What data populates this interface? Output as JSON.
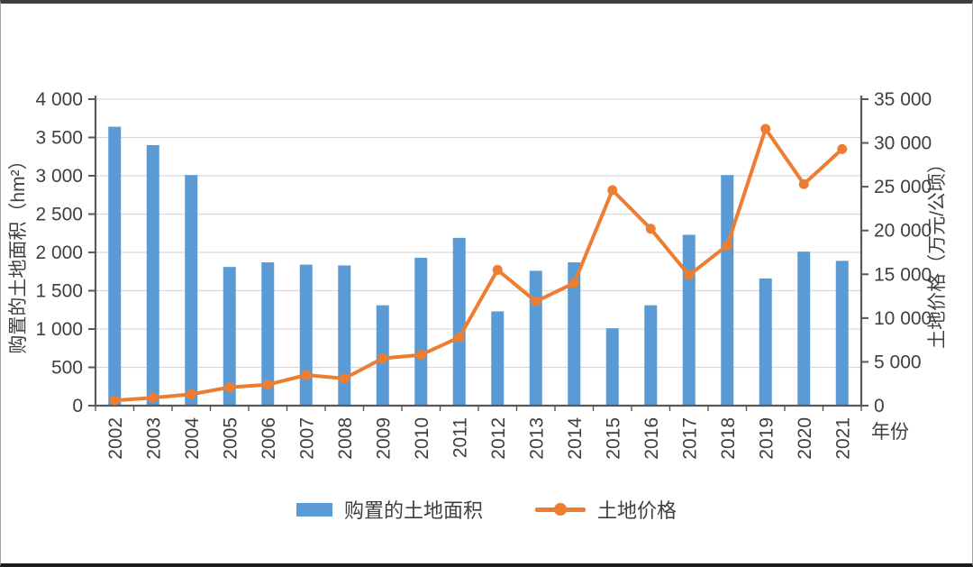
{
  "chart_data": {
    "type": "bar+line",
    "categories": [
      "2002",
      "2003",
      "2004",
      "2005",
      "2006",
      "2007",
      "2008",
      "2009",
      "2010",
      "2011",
      "2012",
      "2013",
      "2014",
      "2015",
      "2016",
      "2017",
      "2018",
      "2019",
      "2020",
      "2021"
    ],
    "series": [
      {
        "name": "购置的土地面积",
        "type": "bar",
        "axis": "left",
        "color": "#5B9BD5",
        "values": [
          3640,
          3400,
          3010,
          1810,
          1870,
          1840,
          1830,
          1310,
          1930,
          2190,
          1230,
          1760,
          1870,
          1010,
          1310,
          2230,
          3010,
          1660,
          2010,
          1890
        ]
      },
      {
        "name": "土地价格",
        "type": "line",
        "axis": "right",
        "color": "#ED7D31",
        "values": [
          600,
          900,
          1300,
          2100,
          2400,
          3500,
          3100,
          5400,
          5800,
          7800,
          15500,
          11900,
          14000,
          24600,
          20200,
          14900,
          18300,
          31600,
          25300,
          29300
        ]
      }
    ],
    "left_axis": {
      "title": "购置的土地面积（hm²）",
      "min": 0,
      "max": 4000,
      "step": 500,
      "tick_labels": [
        "0",
        "500",
        "1 000",
        "1 500",
        "2 000",
        "2 500",
        "3 000",
        "3 500",
        "4 000"
      ]
    },
    "right_axis": {
      "title": "土地价格（万元/公顷）",
      "min": 0,
      "max": 35000,
      "step": 5000,
      "tick_labels": [
        "0",
        "5 000",
        "10 000",
        "15 000",
        "20 000",
        "25 000",
        "30 000",
        "35 000"
      ]
    },
    "x_axis": {
      "title": "年份"
    },
    "legend_position": "bottom",
    "grid": true
  },
  "style": {
    "grid_color": "#D9D9D9",
    "axis_color": "#595959",
    "text_color": "#3F3F3F",
    "background": "#FFFFFF"
  }
}
